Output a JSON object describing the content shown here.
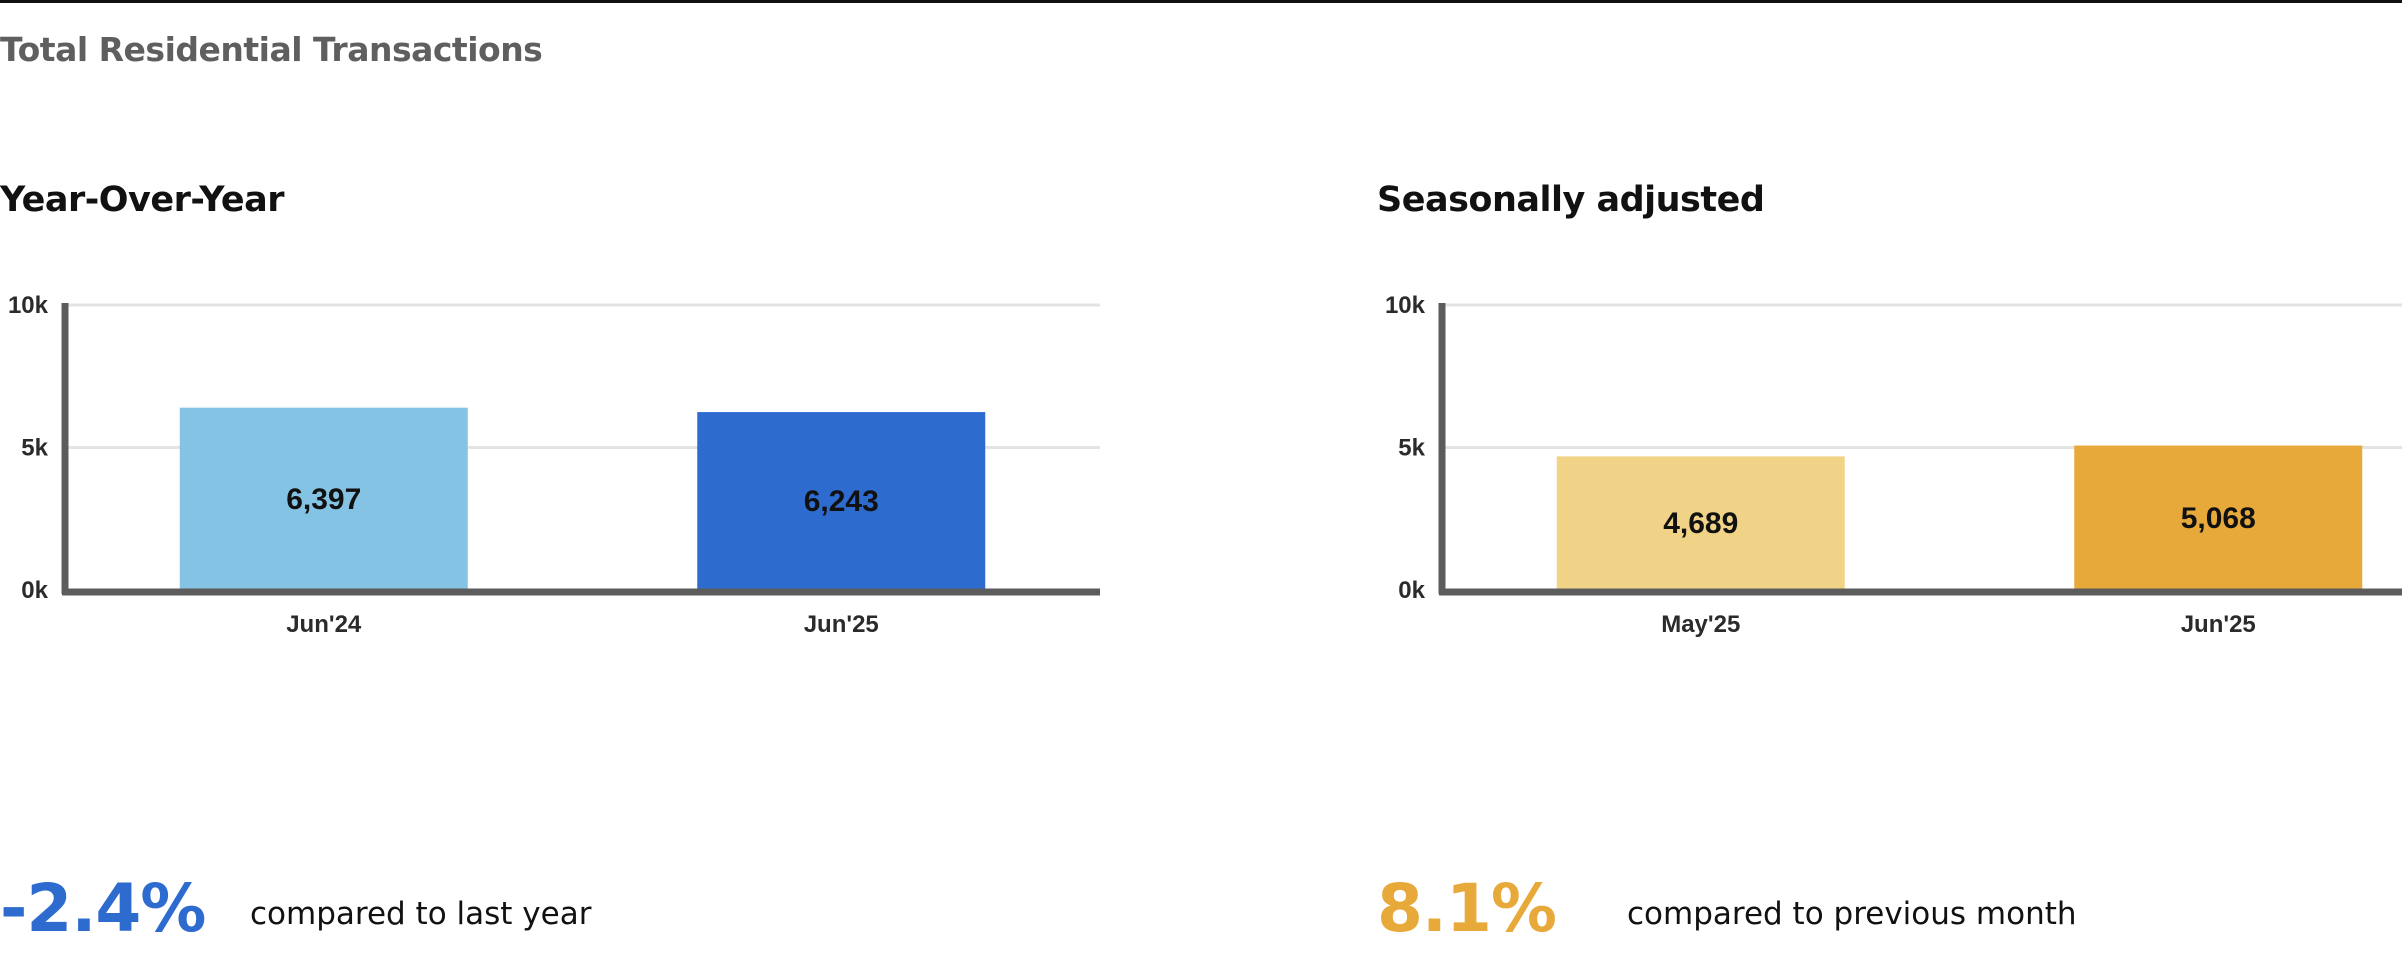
{
  "header": {
    "title": "Total Residential Transactions"
  },
  "chart_data": [
    {
      "type": "bar",
      "title": "Year-Over-Year",
      "categories": [
        "Jun'24",
        "Jun'25"
      ],
      "values": [
        6397,
        6243
      ],
      "value_labels": [
        "6,397",
        "6,243"
      ],
      "colors": [
        "#85c3e5",
        "#2e6bcf"
      ],
      "ylim": [
        0,
        10000
      ],
      "yticks": [
        0,
        5000,
        10000
      ],
      "ytick_labels": [
        "0k",
        "5k",
        "10k"
      ],
      "grid": true,
      "xlabel": "",
      "ylabel": ""
    },
    {
      "type": "bar",
      "title": "Seasonally adjusted",
      "categories": [
        "May'25",
        "Jun'25"
      ],
      "values": [
        4689,
        5068
      ],
      "value_labels": [
        "4,689",
        "5,068"
      ],
      "colors": [
        "#f1d387",
        "#e8a93b"
      ],
      "ylim": [
        0,
        10000
      ],
      "yticks": [
        0,
        5000,
        10000
      ],
      "ytick_labels": [
        "0k",
        "5k",
        "10k"
      ],
      "grid": true,
      "xlabel": "",
      "ylabel": ""
    }
  ],
  "summary": [
    {
      "value": "-2.4%",
      "text": "compared to last year",
      "color": "#2e6bcf"
    },
    {
      "value": "8.1%",
      "text": "compared to previous month",
      "color": "#e8a93b"
    }
  ]
}
